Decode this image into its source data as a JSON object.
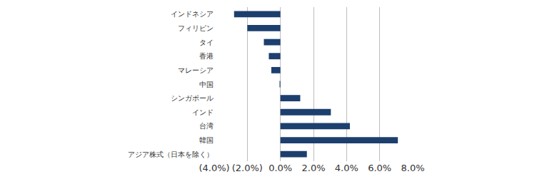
{
  "chart_data": {
    "type": "bar",
    "orientation": "horizontal",
    "categories": [
      "インドネシア",
      "フィリピン",
      "タイ",
      "香港",
      "マレーシア",
      "中国",
      "シンガポール",
      "インド",
      "台湾",
      "韓国",
      "アジア株式（日本を除く）"
    ],
    "values": [
      -2.8,
      -2.0,
      -1.0,
      -0.7,
      -0.55,
      -0.05,
      1.2,
      3.05,
      4.2,
      7.1,
      1.6
    ],
    "color": "#1c3f6e",
    "xlim": [
      -4,
      8
    ],
    "xticks": [
      {
        "value": -4,
        "label": "(4.0%)"
      },
      {
        "value": -2,
        "label": "(2.0%)"
      },
      {
        "value": 0,
        "label": "0.0%"
      },
      {
        "value": 2,
        "label": "2.0%"
      },
      {
        "value": 4,
        "label": "4.0%"
      },
      {
        "value": 6,
        "label": "6.0%"
      },
      {
        "value": 8,
        "label": "8.0%"
      }
    ],
    "grid": true
  }
}
